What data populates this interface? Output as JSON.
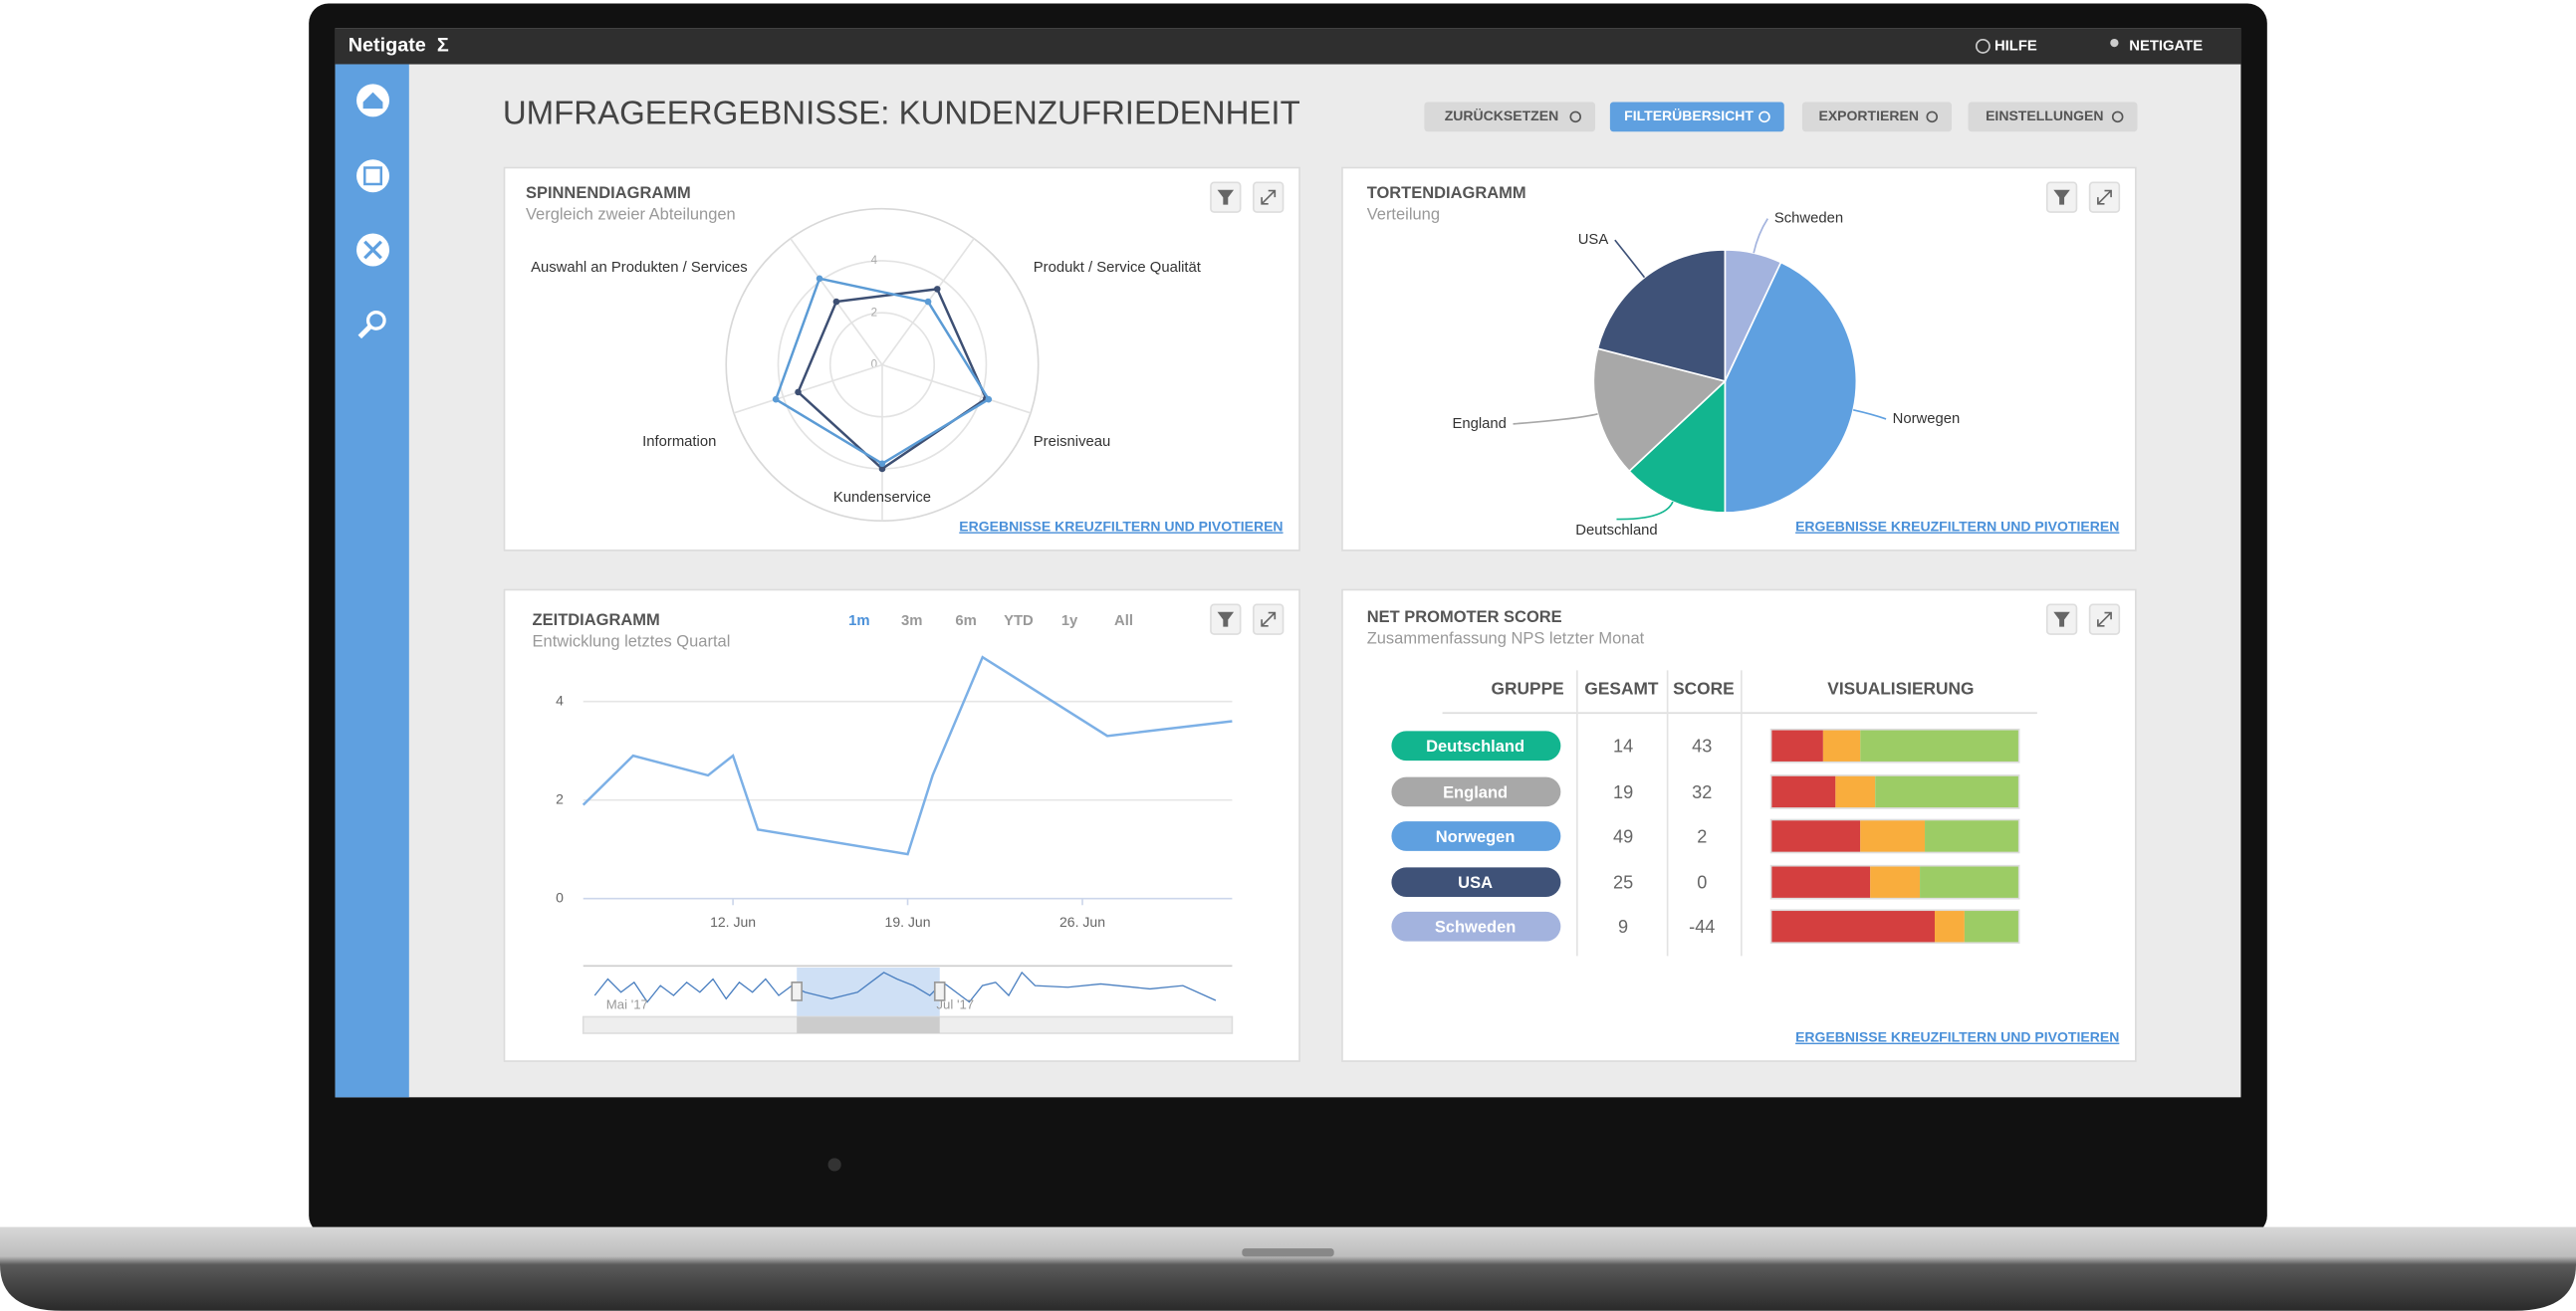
{
  "topbar": {
    "brand": "Netigate",
    "help": "HILFE",
    "user": "NETIGATE"
  },
  "page_title": "UMFRAGEERGEBNISSE: KUNDENZUFRIEDENHEIT",
  "buttons": [
    "ZURÜCKSETZEN",
    "FILTERÜBERSICHT",
    "EXPORTIEREN",
    "EINSTELLUNGEN"
  ],
  "panels": [
    {
      "title": "SPINNENDIAGRAMM",
      "subtitle": "Vergleich zweier Abteilungen",
      "link": "ERGEBNISSE KREUZFILTERN UND PIVOTIEREN",
      "chart_data": {
        "type": "radar",
        "categories": [
          "Produkt / Service Qualität",
          "Preisniveau",
          "Kundenservice",
          "Information",
          "Auswahl an Produkten / Services"
        ],
        "rlim": [
          0,
          6
        ],
        "rticks": [
          0,
          2,
          4
        ],
        "series": [
          {
            "color": "#3d4f73",
            "values": [
              3.6,
              4.2,
              4.0,
              3.4,
              3.0
            ]
          },
          {
            "color": "#5b9bd5",
            "values": [
              3.0,
              4.3,
              3.8,
              4.3,
              4.1
            ]
          }
        ]
      }
    },
    {
      "title": "TORTENDIAGRAMM",
      "subtitle": "Verteilung",
      "link": "ERGEBNISSE KREUZFILTERN UND PIVOTIEREN",
      "chart_data": {
        "type": "pie",
        "categories": [
          "Schweden",
          "Norwegen",
          "Deutschland",
          "England",
          "USA"
        ],
        "values": [
          7,
          43,
          13,
          16,
          21
        ],
        "colors": [
          "#a3b3de",
          "#5fa0e0",
          "#12b58f",
          "#a8a8a8",
          "#3f5278"
        ]
      }
    },
    {
      "title": "ZEITDIAGRAMM",
      "subtitle": "Entwicklung letztes Quartal",
      "range_buttons": [
        "1m",
        "3m",
        "6m",
        "YTD",
        "1y",
        "All"
      ],
      "chart_data": {
        "type": "line",
        "x": [
          "2017-06-06",
          "2017-06-08",
          "2017-06-11",
          "2017-06-12",
          "2017-06-13",
          "2017-06-19",
          "2017-06-20",
          "2017-06-22",
          "2017-06-27",
          "2017-07-02"
        ],
        "values": [
          1.9,
          2.9,
          2.5,
          2.9,
          1.4,
          0.9,
          2.5,
          4.9,
          3.3,
          3.6
        ],
        "color": "#7cb0e6",
        "xlim": [
          "2017-06-06",
          "2017-07-02"
        ],
        "xticks": [
          {
            "value": "2017-06-12",
            "label": "12. Jun"
          },
          {
            "value": "2017-06-19",
            "label": "19. Jun"
          },
          {
            "value": "2017-06-26",
            "label": "26. Jun"
          }
        ],
        "ylim": [
          0,
          5
        ],
        "yticks": [
          0,
          2,
          4
        ],
        "grid": true,
        "navigator_labels": [
          "Mai '17",
          "Jul '17"
        ]
      }
    },
    {
      "title": "NET PROMOTER SCORE",
      "subtitle": "Zusammenfassung NPS letzter Monat",
      "link": "ERGEBNISSE KREUZFILTERN UND PIVOTIEREN",
      "table": {
        "columns": [
          "GRUPPE",
          "GESAMT",
          "SCORE",
          "VISUALISIERUNG"
        ],
        "rows": [
          [
            "Deutschland",
            14,
            43
          ],
          [
            "England",
            19,
            32
          ],
          [
            "Norwegen",
            49,
            2
          ],
          [
            "USA",
            25,
            0
          ],
          [
            "Schweden",
            9,
            -44
          ]
        ],
        "colors": [
          "#12b58f",
          "#a8a8a8",
          "#5fa0e0",
          "#3f5278",
          "#a3b3de"
        ],
        "visualization": {
          "colors": [
            "#d43f3f",
            "#f9ad3d",
            "#9ccc65"
          ],
          "values": [
            [
              21,
              15,
              64
            ],
            [
              26,
              16,
              58
            ],
            [
              36,
              26,
              38
            ],
            [
              40,
              20,
              40
            ],
            [
              66,
              12,
              22
            ]
          ]
        }
      }
    }
  ]
}
